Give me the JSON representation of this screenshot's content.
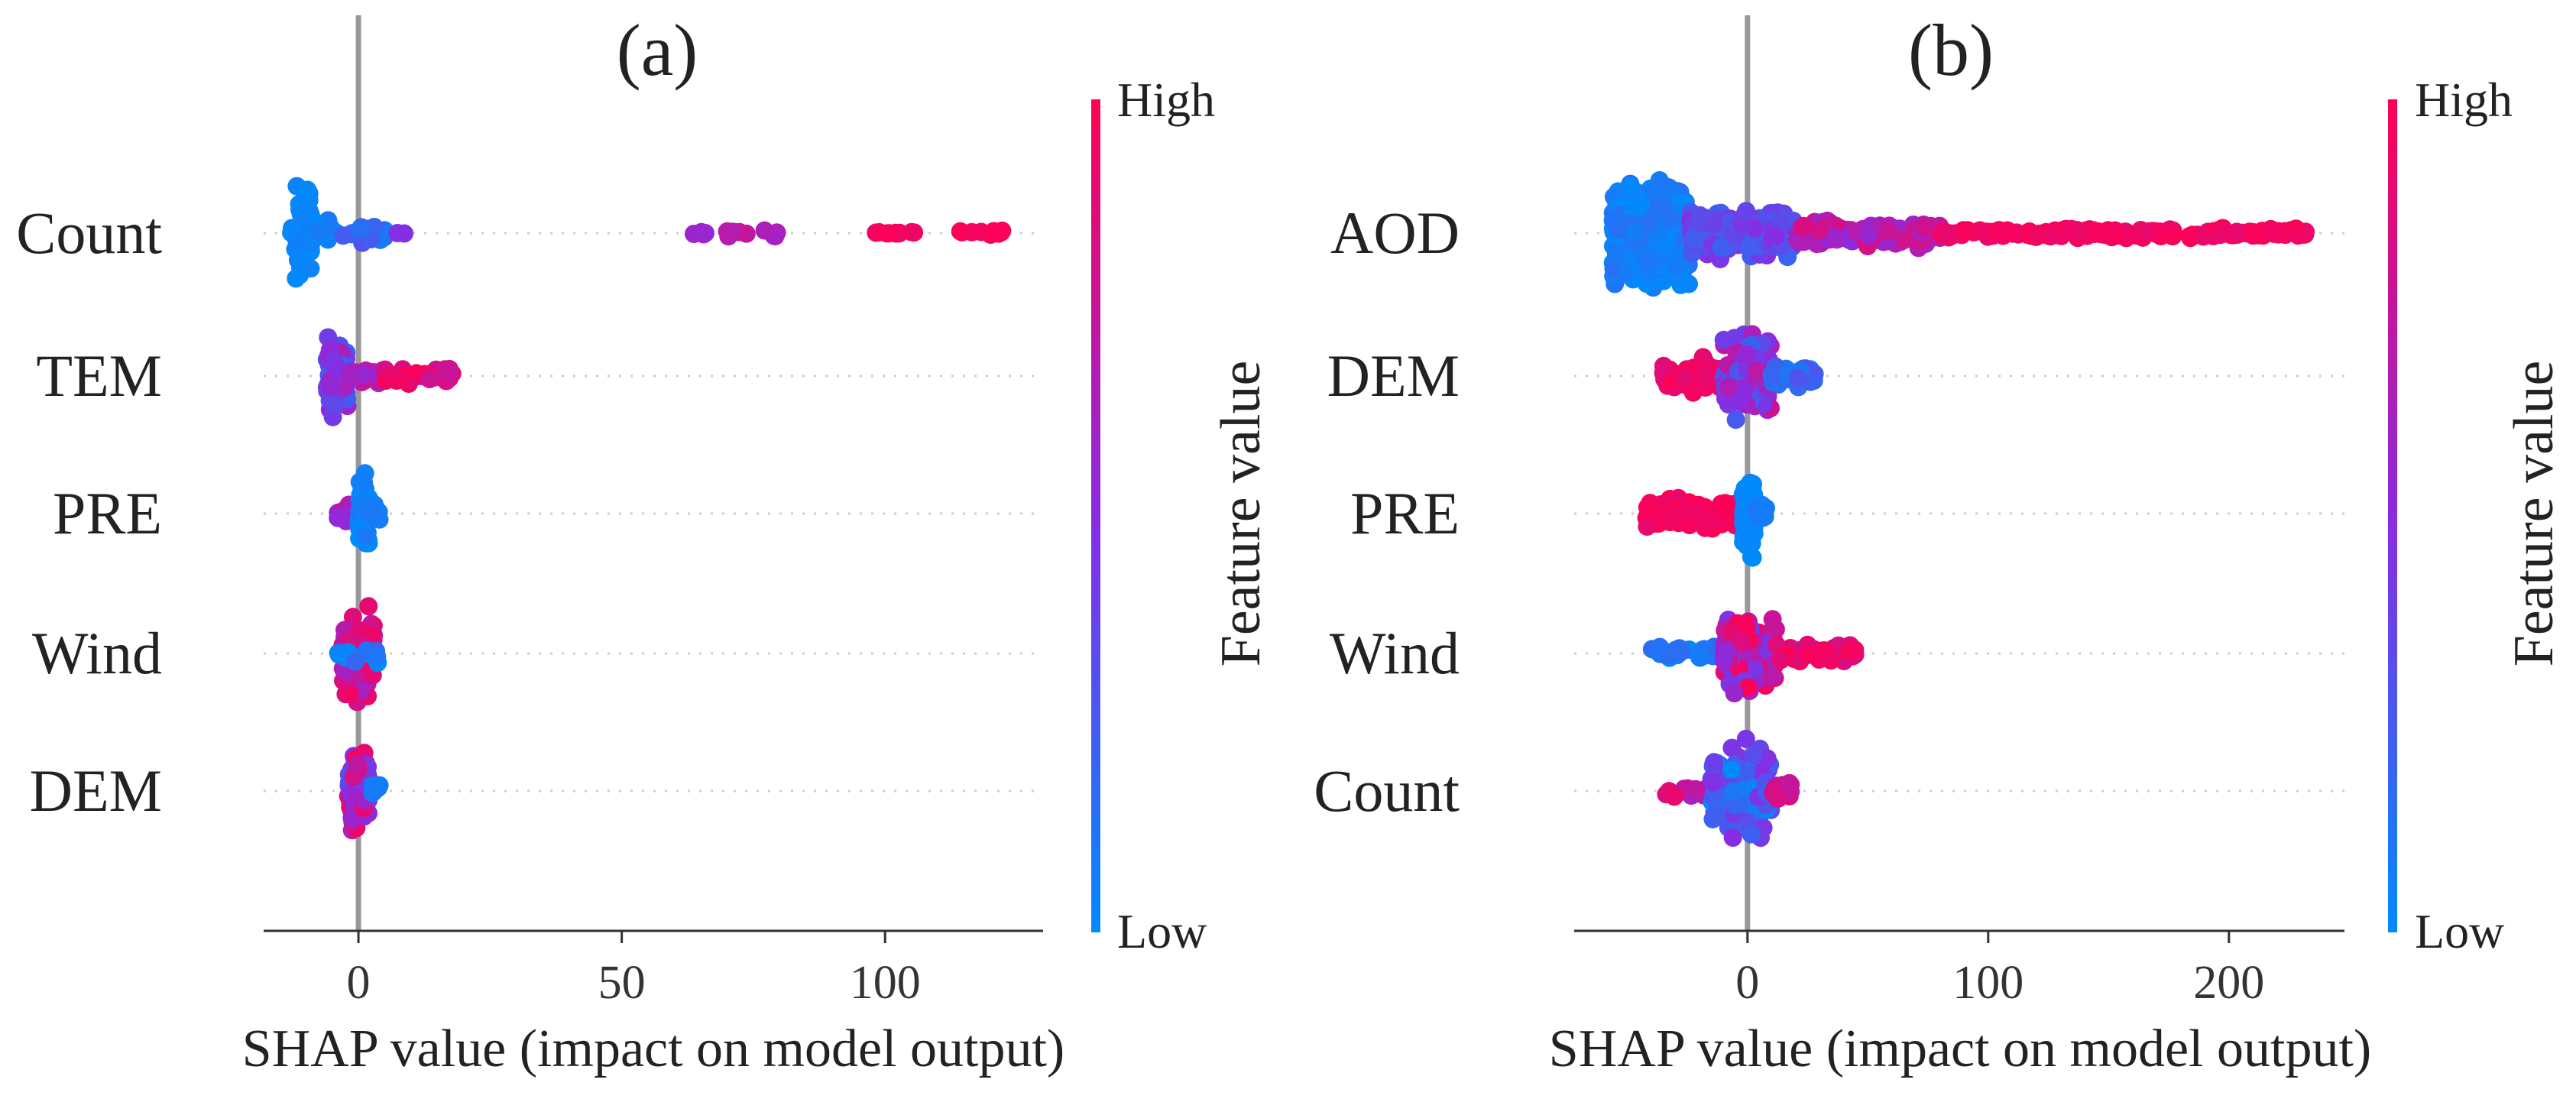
{
  "colors": {
    "low": "#008bfb",
    "mid": "#8a2be2",
    "high": "#ff0052",
    "zero_line": "#999999",
    "axis": "#333333",
    "dotted": "#cccccc"
  },
  "chart_data": [
    {
      "type": "scatter",
      "subtype": "shap_beeswarm",
      "title": "(a)",
      "xlabel": "SHAP value (impact on model output)",
      "xlim": [
        -18,
        130
      ],
      "xticks": [
        0,
        50,
        100
      ],
      "xtick_labels": [
        "0",
        "50",
        "100"
      ],
      "colorbar": {
        "title": "Feature value",
        "high_label": "High",
        "low_label": "Low"
      },
      "features": [
        {
          "name": "Count",
          "clusters": [
            {
              "x0": -12,
              "x1": -9,
              "n": 70,
              "spread": 1.0,
              "c0": 0.0,
              "c1": 0.05
            },
            {
              "x0": -13,
              "x1": -4,
              "n": 40,
              "spread": 0.3,
              "c0": 0.0,
              "c1": 0.1
            },
            {
              "x0": -3,
              "x1": 5,
              "n": 18,
              "spread": 0.25,
              "c0": 0.05,
              "c1": 0.3
            },
            {
              "x0": 7,
              "x1": 9,
              "n": 2,
              "spread": 0.05,
              "c0": 0.4,
              "c1": 0.5
            },
            {
              "x0": 62,
              "x1": 66,
              "n": 4,
              "spread": 0.05,
              "c0": 0.55,
              "c1": 0.65
            },
            {
              "x0": 70,
              "x1": 80,
              "n": 10,
              "spread": 0.08,
              "c0": 0.6,
              "c1": 0.8
            },
            {
              "x0": 98,
              "x1": 106,
              "n": 10,
              "spread": 0.05,
              "c0": 0.92,
              "c1": 1.0
            },
            {
              "x0": 114,
              "x1": 123,
              "n": 10,
              "spread": 0.05,
              "c0": 0.95,
              "c1": 1.0
            }
          ]
        },
        {
          "name": "TEM",
          "clusters": [
            {
              "x0": -6,
              "x1": -2,
              "n": 90,
              "spread": 0.75,
              "c0": 0.2,
              "c1": 0.7
            },
            {
              "x0": -2,
              "x1": 5,
              "n": 30,
              "spread": 0.2,
              "c0": 0.5,
              "c1": 0.8
            },
            {
              "x0": 5,
              "x1": 18,
              "n": 40,
              "spread": 0.15,
              "c0": 0.75,
              "c1": 1.0
            }
          ]
        },
        {
          "name": "PRE",
          "clusters": [
            {
              "x0": -4,
              "x1": -1,
              "n": 20,
              "spread": 0.2,
              "c0": 0.5,
              "c1": 0.7
            },
            {
              "x0": 0,
              "x1": 2,
              "n": 70,
              "spread": 0.8,
              "c0": 0.0,
              "c1": 0.1
            },
            {
              "x0": 2,
              "x1": 4,
              "n": 10,
              "spread": 0.2,
              "c0": 0.0,
              "c1": 0.1
            }
          ]
        },
        {
          "name": "Wind",
          "clusters": [
            {
              "x0": -3,
              "x1": 3,
              "n": 110,
              "spread": 0.9,
              "c0": 0.6,
              "c1": 1.0
            },
            {
              "x0": -4,
              "x1": 4,
              "n": 12,
              "spread": 0.2,
              "c0": 0.0,
              "c1": 0.2
            }
          ]
        },
        {
          "name": "DEM",
          "clusters": [
            {
              "x0": -2,
              "x1": 2,
              "n": 100,
              "spread": 0.85,
              "c0": 0.3,
              "c1": 1.0
            },
            {
              "x0": 2,
              "x1": 4,
              "n": 6,
              "spread": 0.15,
              "c0": 0.0,
              "c1": 0.1
            }
          ]
        }
      ]
    },
    {
      "type": "scatter",
      "subtype": "shap_beeswarm",
      "title": "(b)",
      "xlabel": "SHAP value (impact on model output)",
      "xlim": [
        -72,
        248
      ],
      "xticks": [
        0,
        100,
        200
      ],
      "xtick_labels": [
        "0",
        "100",
        "200"
      ],
      "colorbar": {
        "title": "Feature value",
        "high_label": "High",
        "low_label": "Low"
      },
      "features": [
        {
          "name": "AOD",
          "clusters": [
            {
              "x0": -56,
              "x1": -24,
              "n": 500,
              "spread": 1.0,
              "c0": 0.0,
              "c1": 0.15
            },
            {
              "x0": -24,
              "x1": 20,
              "n": 260,
              "spread": 0.45,
              "c0": 0.2,
              "c1": 0.5
            },
            {
              "x0": 20,
              "x1": 80,
              "n": 180,
              "spread": 0.25,
              "c0": 0.5,
              "c1": 0.85
            },
            {
              "x0": 80,
              "x1": 232,
              "n": 200,
              "spread": 0.1,
              "c0": 0.9,
              "c1": 1.0
            }
          ]
        },
        {
          "name": "DEM",
          "clusters": [
            {
              "x0": -35,
              "x1": -10,
              "n": 70,
              "spread": 0.35,
              "c0": 0.85,
              "c1": 1.0
            },
            {
              "x0": -10,
              "x1": 10,
              "n": 130,
              "spread": 0.9,
              "c0": 0.2,
              "c1": 0.8
            },
            {
              "x0": 10,
              "x1": 28,
              "n": 40,
              "spread": 0.25,
              "c0": 0.05,
              "c1": 0.3
            }
          ]
        },
        {
          "name": "PRE",
          "clusters": [
            {
              "x0": -42,
              "x1": -4,
              "n": 120,
              "spread": 0.3,
              "c0": 0.9,
              "c1": 1.0
            },
            {
              "x0": -2,
              "x1": 3,
              "n": 90,
              "spread": 0.8,
              "c0": 0.0,
              "c1": 0.05
            },
            {
              "x0": 3,
              "x1": 8,
              "n": 10,
              "spread": 0.2,
              "c0": 0.0,
              "c1": 0.1
            }
          ]
        },
        {
          "name": "Wind",
          "clusters": [
            {
              "x0": -40,
              "x1": -10,
              "n": 30,
              "spread": 0.15,
              "c0": 0.0,
              "c1": 0.2
            },
            {
              "x0": -10,
              "x1": 12,
              "n": 160,
              "spread": 0.85,
              "c0": 0.4,
              "c1": 1.0
            },
            {
              "x0": 12,
              "x1": 45,
              "n": 60,
              "spread": 0.2,
              "c0": 0.8,
              "c1": 1.0
            }
          ]
        },
        {
          "name": "Count",
          "clusters": [
            {
              "x0": -34,
              "x1": -15,
              "n": 18,
              "spread": 0.12,
              "c0": 0.6,
              "c1": 1.0
            },
            {
              "x0": -15,
              "x1": 10,
              "n": 130,
              "spread": 0.9,
              "c0": 0.0,
              "c1": 0.5
            },
            {
              "x0": 10,
              "x1": 18,
              "n": 20,
              "spread": 0.2,
              "c0": 0.4,
              "c1": 0.9
            }
          ]
        }
      ]
    }
  ]
}
